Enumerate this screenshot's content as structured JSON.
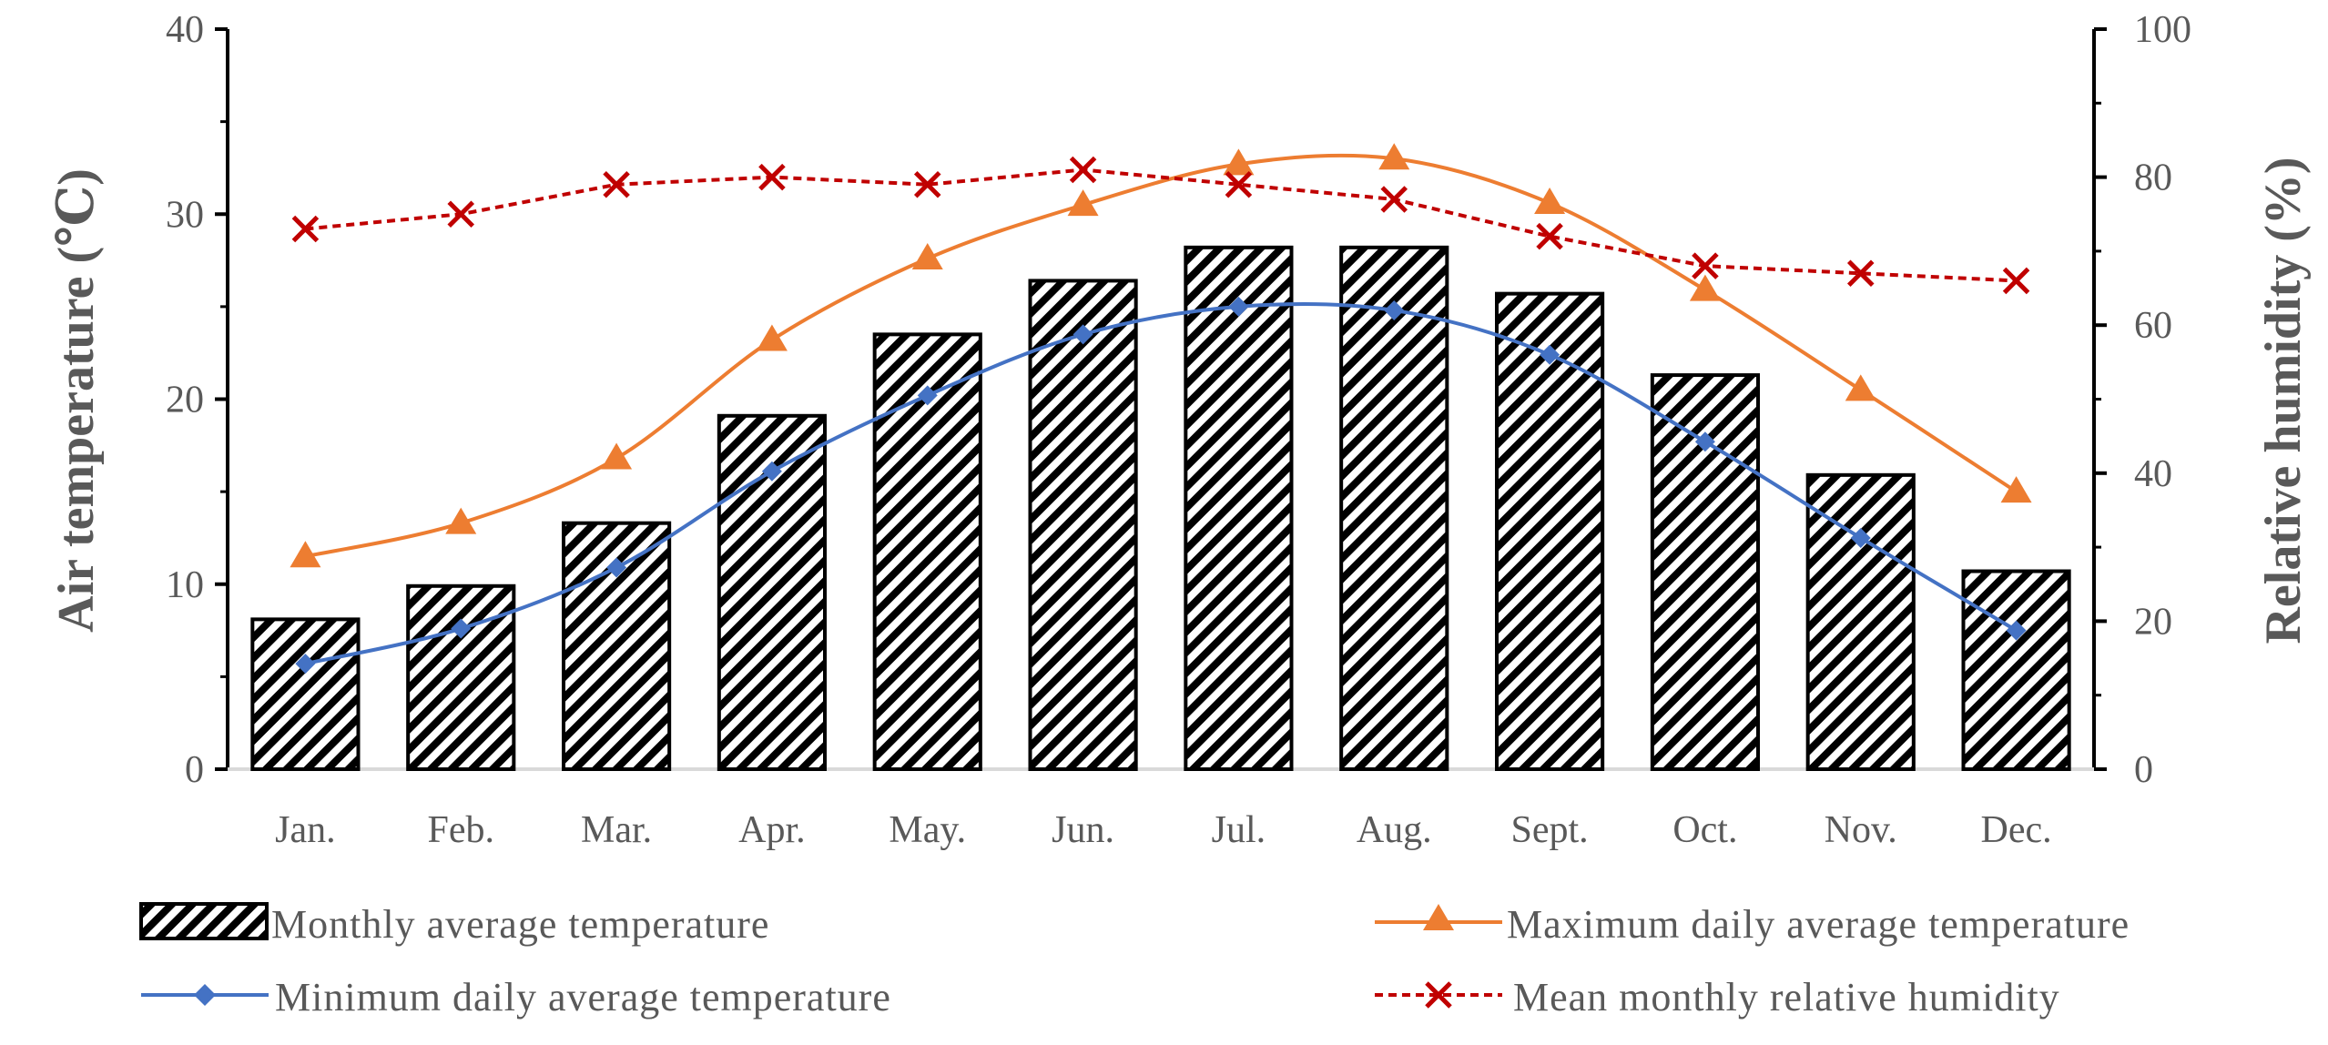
{
  "chart_data": {
    "type": "bar+line",
    "categories": [
      "Jan.",
      "Feb.",
      "Mar.",
      "Apr.",
      "May.",
      "Jun.",
      "Jul.",
      "Aug.",
      "Sept.",
      "Oct.",
      "Nov.",
      "Dec."
    ],
    "y_left": {
      "label": "Air temperature (℃)",
      "range": [
        0,
        40
      ],
      "ticks": [
        "0",
        "10",
        "20",
        "30",
        "40"
      ]
    },
    "y_right": {
      "label": "Relative humidity (%)",
      "range": [
        0,
        100
      ],
      "ticks": [
        "0",
        "20",
        "40",
        "60",
        "80",
        "100"
      ]
    },
    "series": [
      {
        "name": "Monthly average temperature",
        "type": "bar",
        "axis": "left",
        "values": [
          8.1,
          9.9,
          13.3,
          19.1,
          23.5,
          26.4,
          28.2,
          28.2,
          25.7,
          21.3,
          15.9,
          10.7
        ]
      },
      {
        "name": "Maximum daily average temperature",
        "type": "line",
        "axis": "left",
        "marker": "triangle",
        "color": "#ED7D31",
        "values": [
          11.5,
          13.3,
          16.8,
          23.2,
          27.6,
          30.5,
          32.7,
          33.0,
          30.6,
          25.9,
          20.5,
          15.0
        ]
      },
      {
        "name": "Minimum daily average temperature",
        "type": "line",
        "axis": "left",
        "marker": "diamond",
        "color": "#4472C4",
        "values": [
          5.7,
          7.6,
          10.9,
          16.1,
          20.2,
          23.5,
          25.0,
          24.8,
          22.4,
          17.7,
          12.5,
          7.5
        ]
      },
      {
        "name": "Mean monthly relative humidity",
        "type": "line",
        "axis": "right",
        "marker": "x",
        "dashed": true,
        "color": "#C00000",
        "values": [
          73,
          75,
          79,
          80,
          79,
          81,
          79,
          77,
          72,
          68,
          67,
          66
        ]
      }
    ],
    "legend": [
      "Monthly average temperature",
      "Maximum daily average temperature",
      "Minimum daily average temperature",
      "Mean monthly relative humidity"
    ]
  }
}
